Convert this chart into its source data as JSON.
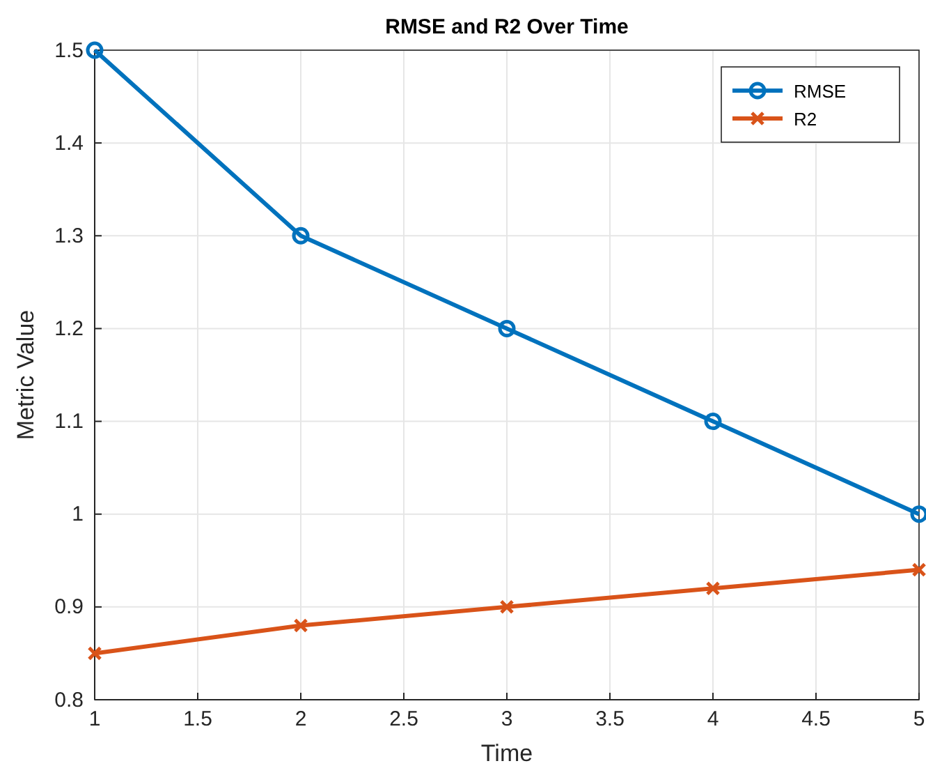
{
  "chart_data": {
    "type": "line",
    "title": "RMSE and R2 Over Time",
    "xlabel": "Time",
    "ylabel": "Metric Value",
    "x": [
      1,
      2,
      3,
      4,
      5
    ],
    "series": [
      {
        "name": "RMSE",
        "color": "#0072bd",
        "values": [
          1.5,
          1.3,
          1.2,
          1.1,
          1.0
        ],
        "marker": "circle"
      },
      {
        "name": "R2",
        "color": "#d95319",
        "values": [
          0.85,
          0.88,
          0.9,
          0.92,
          0.94
        ],
        "marker": "cross"
      }
    ],
    "xlim": [
      1,
      5
    ],
    "xticks": [
      1,
      1.5,
      2,
      2.5,
      3,
      3.5,
      4,
      4.5,
      5
    ],
    "ylim": [
      0.8,
      1.5
    ],
    "yticks": [
      0.8,
      0.9,
      1,
      1.1,
      1.2,
      1.3,
      1.4,
      1.5
    ],
    "grid": true,
    "legend": "top right",
    "line_style": "solid"
  }
}
